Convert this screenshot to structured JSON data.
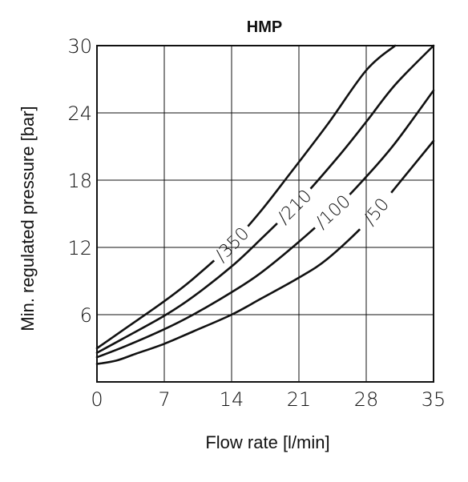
{
  "chart_data": {
    "type": "line",
    "title": "HMP",
    "xlabel": "Flow rate [l/min]",
    "ylabel": "Min. regulated pressure [bar]",
    "xlim": [
      0,
      35
    ],
    "ylim": [
      0,
      30
    ],
    "x_ticks": [
      "0",
      "7",
      "14",
      "21",
      "28",
      "35"
    ],
    "y_ticks": [
      "6",
      "12",
      "18",
      "24",
      "30"
    ],
    "grid": true,
    "series": [
      {
        "name": "/350",
        "x": [
          0,
          3,
          7,
          10,
          14,
          17,
          20,
          24,
          28,
          31
        ],
        "values": [
          3.0,
          4.8,
          7.2,
          9.2,
          12.3,
          15.2,
          18.5,
          23.0,
          27.8,
          30.0
        ]
      },
      {
        "name": "/210",
        "x": [
          0,
          3,
          7,
          10,
          14,
          17,
          21,
          25,
          28,
          31,
          35
        ],
        "values": [
          2.6,
          4.0,
          5.9,
          7.6,
          10.3,
          12.7,
          16.1,
          20.0,
          23.2,
          26.5,
          30.0
        ]
      },
      {
        "name": "/100",
        "x": [
          0,
          3,
          7,
          10,
          14,
          17,
          21,
          25,
          28,
          31,
          35
        ],
        "values": [
          2.2,
          3.2,
          4.7,
          6.0,
          8.0,
          9.7,
          12.5,
          15.6,
          18.3,
          21.3,
          26.0
        ]
      },
      {
        "name": "/50",
        "x": [
          0,
          2,
          4,
          7,
          10,
          14,
          17,
          21,
          24,
          28,
          31,
          35
        ],
        "values": [
          1.6,
          1.9,
          2.5,
          3.4,
          4.5,
          6.0,
          7.4,
          9.3,
          11.0,
          14.2,
          17.3,
          21.5
        ]
      }
    ],
    "label_x": [
      14,
      20.5,
      24.5,
      29
    ]
  }
}
